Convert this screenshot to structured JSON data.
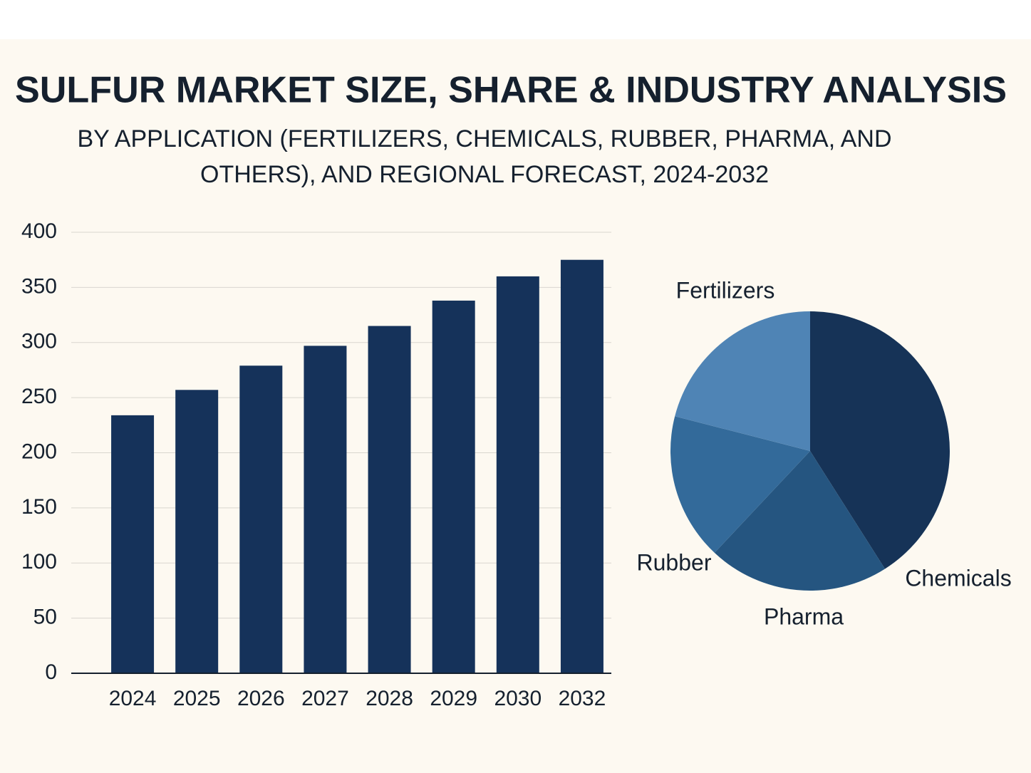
{
  "title": "SULFUR MARKET SIZE, SHARE & INDUSTRY ANALYSIS",
  "subtitle": "BY APPLICATION (FERTILIZERS, CHEMICALS, RUBBER, PHARMA, AND OTHERS), AND REGIONAL FORECAST, 2024-2032",
  "chart_data": [
    {
      "type": "bar",
      "categories": [
        "2024",
        "2025",
        "2026",
        "2027",
        "2028",
        "2029",
        "2030",
        "2032"
      ],
      "values": [
        234,
        257,
        279,
        297,
        315,
        338,
        360,
        375
      ],
      "color": "#15325a",
      "ylim": [
        0,
        400
      ],
      "yticks": [
        0,
        50,
        100,
        150,
        200,
        250,
        300,
        350,
        400
      ],
      "grid": true
    },
    {
      "type": "pie",
      "categories": [
        "Chemicals",
        "Pharma",
        "Rubber",
        "Fertilizers"
      ],
      "values": [
        41,
        21,
        17,
        21
      ],
      "colors": [
        "#163357",
        "#255580",
        "#336a9a",
        "#4f84b5"
      ]
    }
  ]
}
